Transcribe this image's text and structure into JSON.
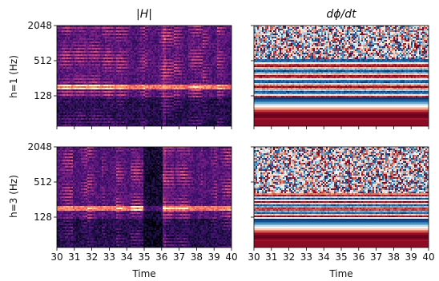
{
  "chart_data": {
    "type": "heatmap",
    "column_titles": [
      "|H|",
      "dϕ/dt"
    ],
    "row_labels": [
      "h=1 (Hz)",
      "h=3 (Hz)"
    ],
    "xlabel": "Time",
    "x_ticks": [
      "30",
      "31",
      "32",
      "33",
      "34",
      "35",
      "36",
      "37",
      "38",
      "39",
      "40"
    ],
    "xlim": [
      30,
      40
    ],
    "y_ticks": [
      "2048",
      "512",
      "128"
    ],
    "y_scale": "log2",
    "colormaps": [
      "magma",
      "RdBu"
    ],
    "panels": [
      {
        "row": 0,
        "col": 0,
        "quantity": "|H|",
        "h": 1
      },
      {
        "row": 0,
        "col": 1,
        "quantity": "dϕ/dt",
        "h": 1
      },
      {
        "row": 1,
        "col": 0,
        "quantity": "|H|",
        "h": 3
      },
      {
        "row": 1,
        "col": 1,
        "quantity": "dϕ/dt",
        "h": 3
      }
    ]
  }
}
